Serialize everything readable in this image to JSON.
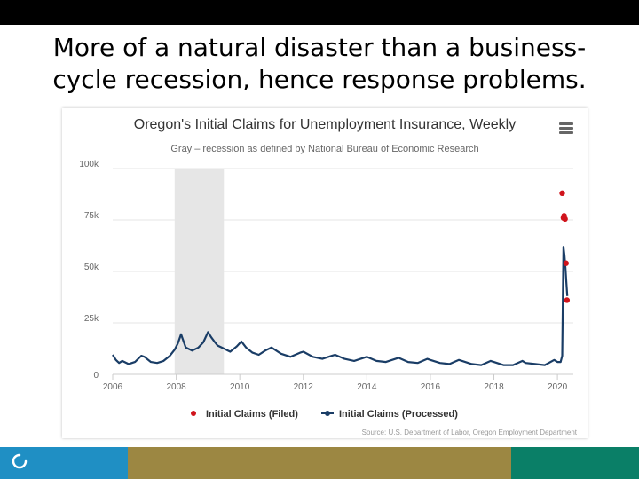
{
  "slide": {
    "title_line1": "More of a natural disaster than a business-",
    "title_line2": "cycle recession, hence response problems."
  },
  "colors": {
    "filed": "#d0141c",
    "processed": "#1a3d66",
    "recession_band": "#e6e6e6",
    "footer_blue": "#1f8fc4",
    "footer_olive": "#9c8742",
    "footer_teal": "#0a7f67"
  },
  "chart_data": {
    "type": "line",
    "title": "Oregon's Initial Claims for Unemployment Insurance, Weekly",
    "subtitle": "Gray – recession as defined by National Bureau of Economic Research",
    "credits": "Source: U.S. Department of Labor, Oregon Employment Department",
    "xlim": [
      2006,
      2020.5
    ],
    "ylim": [
      0,
      100000
    ],
    "x_ticks": [
      2006,
      2008,
      2010,
      2012,
      2014,
      2016,
      2018,
      2020
    ],
    "y_ticks": [
      0,
      25000,
      50000,
      75000,
      100000
    ],
    "y_tick_labels": [
      "0",
      "25k",
      "50k",
      "75k",
      "100k"
    ],
    "grid": true,
    "legend_position": "bottom",
    "recession": {
      "start": 2007.95,
      "end": 2009.5
    },
    "series": [
      {
        "name": "Initial Claims (Filed)",
        "style": "markers",
        "x": [
          2020.15,
          2020.19,
          2020.21,
          2020.24,
          2020.27,
          2020.3
        ],
        "y": [
          88000,
          76000,
          77000,
          75500,
          54000,
          36000
        ]
      },
      {
        "name": "Initial Claims (Processed)",
        "style": "line",
        "x": [
          2006.0,
          2006.1,
          2006.2,
          2006.3,
          2006.5,
          2006.7,
          2006.9,
          2007.0,
          2007.2,
          2007.4,
          2007.6,
          2007.8,
          2007.95,
          2008.05,
          2008.15,
          2008.3,
          2008.5,
          2008.7,
          2008.85,
          2009.0,
          2009.1,
          2009.2,
          2009.3,
          2009.5,
          2009.7,
          2009.9,
          2010.05,
          2010.2,
          2010.4,
          2010.6,
          2010.8,
          2011.0,
          2011.3,
          2011.6,
          2011.9,
          2012.0,
          2012.3,
          2012.6,
          2012.9,
          2013.0,
          2013.3,
          2013.6,
          2013.9,
          2014.0,
          2014.3,
          2014.6,
          2014.9,
          2015.0,
          2015.3,
          2015.6,
          2015.9,
          2016.0,
          2016.3,
          2016.6,
          2016.9,
          2017.0,
          2017.3,
          2017.6,
          2017.9,
          2018.0,
          2018.3,
          2018.6,
          2018.9,
          2019.0,
          2019.3,
          2019.6,
          2019.9,
          2020.0,
          2020.1,
          2020.15,
          2020.19,
          2020.22,
          2020.25,
          2020.28,
          2020.31
        ],
        "y": [
          9500,
          7000,
          5500,
          6500,
          5000,
          6000,
          9000,
          8500,
          6000,
          5500,
          6500,
          9000,
          12000,
          15000,
          19500,
          13000,
          11500,
          13000,
          15500,
          20500,
          18000,
          16000,
          14000,
          12500,
          11000,
          13500,
          16000,
          13000,
          10500,
          9500,
          11500,
          13000,
          10000,
          8500,
          10500,
          11000,
          8500,
          7500,
          9000,
          9500,
          7500,
          6500,
          8000,
          8500,
          6500,
          6000,
          7500,
          8000,
          6000,
          5500,
          7500,
          7000,
          5500,
          5000,
          7000,
          6500,
          5000,
          4500,
          6500,
          6000,
          4500,
          4500,
          6500,
          5500,
          5000,
          4500,
          7000,
          6000,
          6000,
          9000,
          62000,
          58000,
          52000,
          45000,
          38000
        ]
      }
    ]
  }
}
